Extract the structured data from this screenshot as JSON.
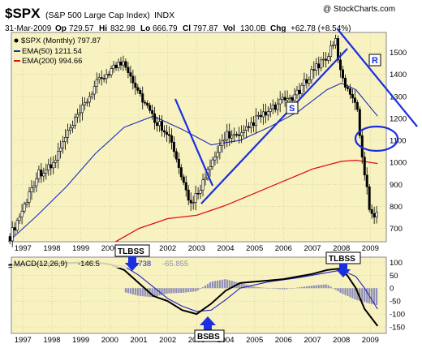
{
  "header": {
    "ticker": "$SPX",
    "name": "(S&P 500 Large Cap Index)",
    "exchange": "INDX",
    "copyright": "@ StockCharts.com",
    "date": "31-Mar-2009",
    "op_label": "Op",
    "op": "729.57",
    "hi_label": "Hi",
    "hi": "832.98",
    "lo_label": "Lo",
    "lo": "666.79",
    "cl_label": "Cl",
    "cl": "797.87",
    "vol_label": "Vol",
    "vol": "130.0B",
    "chg_label": "Chg",
    "chg": "+62.78 (+8.54%)"
  },
  "legend": {
    "price": "$SPX (Monthly) 797.87",
    "ema50": "EMA(50) 1211.54",
    "ema200": "EMA(200) 994.66"
  },
  "annotations": {
    "r_label": "R",
    "s_label": "S",
    "tlbss_left": "TLBSS",
    "tlbss_right": "TLBSS",
    "bsbs": "BSBS"
  },
  "macd_legend": {
    "label": "MACD(12,26,9)",
    "v1": "-146.5",
    "v2": "-80.738",
    "v3": "-65.855"
  },
  "colors": {
    "panel_bg": "#f7f2c0",
    "grid": "#c9c39a",
    "ema50": "#1f2fb8",
    "ema200": "#e01010",
    "trendline": "#1a2fe0",
    "macd": "#000000",
    "signal": "#2020c0",
    "hist": "#8f8fb8"
  },
  "chart_data": [
    {
      "type": "line",
      "panel": "price",
      "x_ticks": [
        "1997",
        "1998",
        "1999",
        "2000",
        "2001",
        "2002",
        "2003",
        "2004",
        "2005",
        "2006",
        "2007",
        "2008",
        "2009"
      ],
      "y_ticks": [
        700,
        800,
        900,
        1000,
        1100,
        1200,
        1300,
        1400,
        1500
      ],
      "ylim": [
        640,
        1590
      ],
      "series": [
        {
          "name": "$SPX (Monthly)",
          "style": "candlestick",
          "x": [
            1996.5,
            1997,
            1997.5,
            1998,
            1998.5,
            1999,
            1999.5,
            2000,
            2000.5,
            2001,
            2001.5,
            2002,
            2002.5,
            2002.75,
            2003,
            2003.5,
            2004,
            2004.5,
            2005,
            2005.5,
            2006,
            2006.5,
            2007,
            2007.5,
            2007.8,
            2008,
            2008.5,
            2008.75,
            2008.9,
            2009,
            2009.25
          ],
          "y": [
            650,
            790,
            950,
            980,
            1120,
            1230,
            1350,
            1420,
            1460,
            1320,
            1200,
            1140,
            920,
            800,
            860,
            980,
            1130,
            1110,
            1190,
            1230,
            1280,
            1310,
            1420,
            1480,
            1550,
            1380,
            1280,
            1000,
            880,
            740,
            798
          ]
        },
        {
          "name": "EMA(50)",
          "x": [
            1996.5,
            1997.5,
            1998.5,
            1999.5,
            2000.5,
            2001.5,
            2002.5,
            2003.5,
            2004.5,
            2005.5,
            2006.5,
            2007.5,
            2008.0,
            2008.5,
            2009.25
          ],
          "y": [
            640,
            760,
            890,
            1040,
            1160,
            1210,
            1150,
            1080,
            1100,
            1160,
            1230,
            1330,
            1360,
            1330,
            1210
          ]
        },
        {
          "name": "EMA(200)",
          "x": [
            2000.2,
            2001,
            2002,
            2003,
            2004,
            2005,
            2006,
            2007,
            2008,
            2008.5,
            2009.25
          ],
          "y": [
            640,
            700,
            745,
            760,
            805,
            860,
            915,
            970,
            1005,
            1010,
            995
          ]
        }
      ]
    },
    {
      "type": "bar",
      "panel": "macd",
      "x_ticks": [
        "1997",
        "1998",
        "1999",
        "2000",
        "2001",
        "2002",
        "2003",
        "2004",
        "2005",
        "2006",
        "2007",
        "2008",
        "2009"
      ],
      "y_ticks": [
        -150,
        -100,
        -50,
        0,
        50,
        100
      ],
      "ylim": [
        -175,
        120
      ],
      "series": [
        {
          "name": "MACD(12,26,9)",
          "x": [
            1996.5,
            1997.5,
            1998.5,
            1999.5,
            2000.0,
            2000.5,
            2001.0,
            2001.5,
            2002.0,
            2002.5,
            2003.0,
            2003.5,
            2004.0,
            2004.5,
            2005.0,
            2005.5,
            2006.0,
            2006.5,
            2007.0,
            2007.5,
            2007.9,
            2008.2,
            2008.5,
            2008.8,
            2009.25
          ],
          "y": [
            90,
            95,
            98,
            100,
            92,
            70,
            20,
            -30,
            -50,
            -85,
            -100,
            -60,
            -10,
            20,
            25,
            30,
            35,
            45,
            55,
            70,
            75,
            50,
            0,
            -80,
            -146.5
          ]
        },
        {
          "name": "signal",
          "x": [
            1996.5,
            1997.5,
            1998.5,
            1999.5,
            2000.5,
            2001.0,
            2001.5,
            2002.0,
            2002.5,
            2003.0,
            2003.5,
            2004.0,
            2004.5,
            2005.5,
            2006.5,
            2007.5,
            2008.0,
            2008.5,
            2008.8,
            2009.25
          ],
          "y": [
            80,
            90,
            95,
            98,
            85,
            50,
            5,
            -40,
            -70,
            -90,
            -85,
            -45,
            0,
            25,
            40,
            60,
            70,
            45,
            0,
            -80.738
          ]
        },
        {
          "name": "histogram",
          "style": "bar",
          "x": [
            2000.5,
            2001,
            2001.5,
            2002,
            2002.5,
            2003,
            2003.5,
            2004,
            2004.5,
            2005,
            2006,
            2007,
            2007.5,
            2008,
            2008.5,
            2009,
            2009.25
          ],
          "y": [
            -15,
            -30,
            -35,
            -20,
            -18,
            -12,
            25,
            35,
            20,
            5,
            -5,
            10,
            15,
            -20,
            -45,
            -60,
            -65.855
          ]
        }
      ]
    }
  ]
}
